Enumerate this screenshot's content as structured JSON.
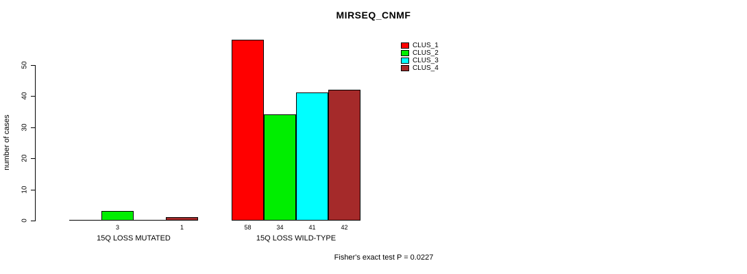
{
  "chart_data": {
    "type": "bar",
    "title": "MIRSEQ_CNMF",
    "ylabel": "number of cases",
    "yticks": [
      0,
      10,
      20,
      30,
      40,
      50
    ],
    "ylim": [
      0,
      58
    ],
    "grid": false,
    "categories": [
      "15Q LOSS MUTATED",
      "15Q LOSS WILD-TYPE"
    ],
    "series": [
      {
        "name": "CLUS_1",
        "color": "#FF0000",
        "values": [
          0,
          58
        ]
      },
      {
        "name": "CLUS_2",
        "color": "#00EE00",
        "values": [
          3,
          34
        ]
      },
      {
        "name": "CLUS_3",
        "color": "#00FFFF",
        "values": [
          0,
          41
        ]
      },
      {
        "name": "CLUS_4",
        "color": "#A52A2A",
        "values": [
          1,
          42
        ]
      }
    ],
    "bar_labels": [
      [
        "",
        "3",
        "",
        "1"
      ],
      [
        "58",
        "34",
        "41",
        "42"
      ]
    ],
    "legend": {
      "position": "top-right",
      "entries": [
        "CLUS_1",
        "CLUS_2",
        "CLUS_3",
        "CLUS_4"
      ]
    },
    "footnote": "Fisher's exact test P = 0.0227"
  }
}
